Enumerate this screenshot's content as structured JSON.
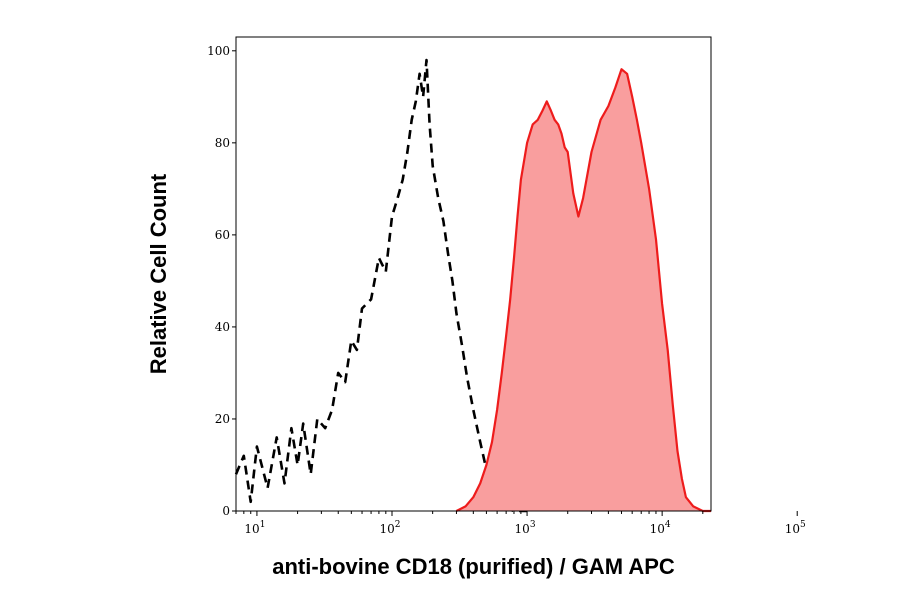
{
  "chart_data": {
    "type": "area",
    "xlabel": "anti-bovine CD18 (purified) / GAM APC",
    "ylabel": "Relative Cell Count",
    "x_scale": "log",
    "xlim": [
      7,
      23000
    ],
    "ylim": [
      0,
      103
    ],
    "x_ticks": [
      {
        "value": 10,
        "base": "10",
        "exp": "1"
      },
      {
        "value": 100,
        "base": "10",
        "exp": "2"
      },
      {
        "value": 1000,
        "base": "10",
        "exp": "3"
      },
      {
        "value": 10000,
        "base": "10",
        "exp": "4"
      },
      {
        "value": 100000,
        "base": "10",
        "exp": "5"
      }
    ],
    "y_ticks": [
      0,
      20,
      40,
      60,
      80,
      100
    ],
    "series": [
      {
        "style": "dashed-line",
        "color": "#000000",
        "x": [
          7,
          8,
          9,
          10,
          12,
          14,
          16,
          18,
          20,
          22,
          25,
          28,
          32,
          36,
          40,
          45,
          50,
          55,
          60,
          70,
          80,
          90,
          100,
          110,
          120,
          130,
          140,
          150,
          160,
          170,
          180,
          190,
          200,
          220,
          240,
          260,
          280,
          300,
          330,
          360,
          400,
          450,
          500,
          550,
          600,
          650,
          700,
          800,
          1000
        ],
        "y": [
          8,
          12,
          2,
          14,
          5,
          16,
          6,
          18,
          10,
          19,
          8,
          20,
          18,
          22,
          30,
          28,
          37,
          35,
          44,
          46,
          55,
          52,
          64,
          68,
          72,
          78,
          85,
          89,
          95,
          90,
          98,
          84,
          75,
          68,
          63,
          56,
          50,
          43,
          36,
          29,
          22,
          15,
          9,
          4,
          2,
          1,
          0.5,
          0,
          0
        ]
      },
      {
        "style": "filled-area",
        "color": "#ee1c1c",
        "fill": "#f99e9e",
        "x": [
          300,
          350,
          400,
          450,
          500,
          550,
          600,
          650,
          700,
          750,
          800,
          850,
          900,
          1000,
          1100,
          1200,
          1300,
          1400,
          1500,
          1600,
          1700,
          1800,
          1900,
          2000,
          2200,
          2400,
          2600,
          3000,
          3500,
          4000,
          4500,
          5000,
          5500,
          6000,
          6500,
          7000,
          8000,
          9000,
          10000,
          11000,
          12000,
          13000,
          14000,
          15000,
          17000,
          20000,
          23000
        ],
        "y": [
          0,
          1,
          3,
          6,
          10,
          15,
          22,
          30,
          38,
          46,
          55,
          64,
          72,
          80,
          84,
          85,
          87,
          89,
          87,
          85,
          84,
          82,
          79,
          78,
          69,
          64,
          68,
          78,
          85,
          88,
          92,
          96,
          95,
          90,
          85,
          80,
          70,
          59,
          45,
          35,
          23,
          13,
          7,
          3,
          1,
          0,
          0
        ]
      }
    ]
  }
}
